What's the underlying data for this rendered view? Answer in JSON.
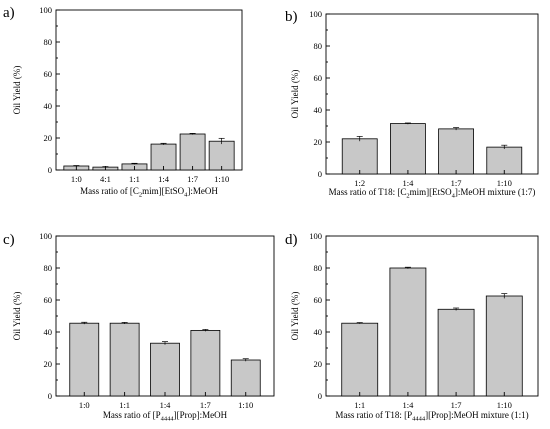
{
  "chart_data": [
    {
      "type": "bar",
      "panel": "a)",
      "categories": [
        "1:0",
        "4:1",
        "1:1",
        "1:4",
        "1:7",
        "1:10"
      ],
      "values": [
        2.5,
        1.8,
        3.8,
        16.2,
        22.5,
        18.0
      ],
      "errors": [
        0.3,
        0.3,
        0.4,
        0.5,
        0.4,
        1.8
      ],
      "ylabel": "Oil Yield (%)",
      "xlabel_parts": [
        [
          "Mass ratio of [C",
          ""
        ],
        [
          "2",
          "sub"
        ],
        [
          "mim][EtSO",
          ""
        ],
        [
          "4",
          "sub"
        ],
        [
          "]:MeOH",
          ""
        ]
      ],
      "ylim": [
        0,
        100
      ],
      "yticks": [
        0,
        20,
        40,
        60,
        80,
        100
      ]
    },
    {
      "type": "bar",
      "panel": "b)",
      "categories": [
        "1:2",
        "1:4",
        "1:7",
        "1:10"
      ],
      "values": [
        22.0,
        31.5,
        28.2,
        16.8
      ],
      "errors": [
        1.5,
        0.4,
        0.8,
        1.2
      ],
      "ylabel": "Oil Yield (%)",
      "xlabel_parts": [
        [
          "Mass ratio of T18: [C",
          ""
        ],
        [
          "2",
          "sub"
        ],
        [
          "mim][EtSO",
          ""
        ],
        [
          "4",
          "sub"
        ],
        [
          "]:MeOH mixture (1:7)",
          ""
        ]
      ],
      "ylim": [
        0,
        100
      ],
      "yticks": [
        0,
        20,
        40,
        60,
        80,
        100
      ]
    },
    {
      "type": "bar",
      "panel": "c)",
      "categories": [
        "1:0",
        "1:1",
        "1:4",
        "1:7",
        "1:10"
      ],
      "values": [
        45.5,
        45.5,
        33.0,
        41.0,
        22.5
      ],
      "errors": [
        0.6,
        0.5,
        1.0,
        0.6,
        0.8
      ],
      "ylabel": "Oil Yield (%)",
      "xlabel_parts": [
        [
          "Mass ratio of [P",
          ""
        ],
        [
          "4444",
          "sub"
        ],
        [
          "][Prop]:MeOH",
          ""
        ]
      ],
      "ylim": [
        0,
        100
      ],
      "yticks": [
        0,
        20,
        40,
        60,
        80,
        100
      ]
    },
    {
      "type": "bar",
      "panel": "d)",
      "categories": [
        "1:1",
        "1:4",
        "1:7",
        "1:10"
      ],
      "values": [
        45.5,
        80.0,
        54.2,
        62.5
      ],
      "errors": [
        0.4,
        0.5,
        0.8,
        1.5
      ],
      "ylabel": "Oil Yield (%)",
      "xlabel_parts": [
        [
          "Mass ratio of T18: [P",
          ""
        ],
        [
          "4444",
          "sub"
        ],
        [
          "][Prop]:MeOH mixture (1:1)",
          ""
        ]
      ],
      "ylim": [
        0,
        100
      ],
      "yticks": [
        0,
        20,
        40,
        60,
        80,
        100
      ]
    }
  ]
}
